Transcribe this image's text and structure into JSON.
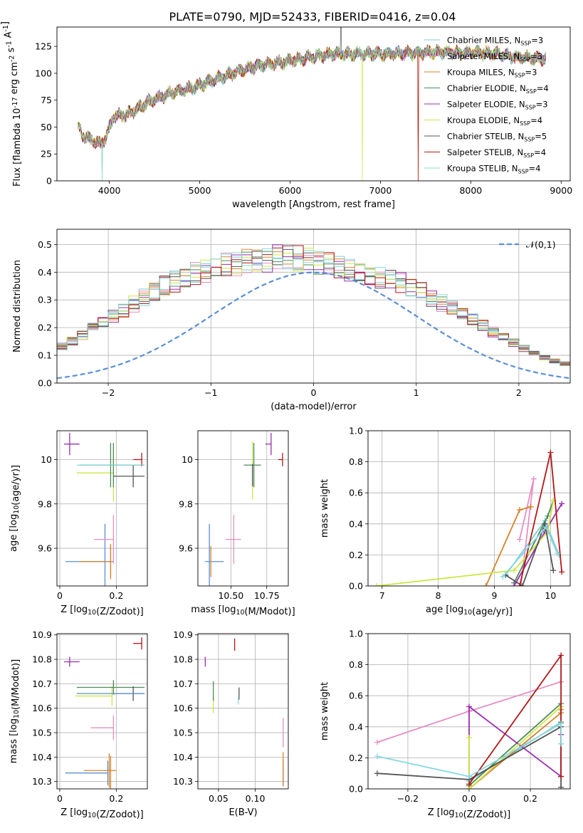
{
  "figure": {
    "title": "PLATE=0790, MJD=52433, FIBERID=0416, z=0.04"
  },
  "chart_data": [
    {
      "id": "spectrum",
      "type": "line",
      "xlabel": "wavelength [Angstrom, rest frame]",
      "ylabel": "Flux [f$_\\lambda$ 10$^{-17}$ erg cm$^{-2}$ s$^{-1}$ A$^{-1}$]",
      "xlim": [
        3420,
        9100
      ],
      "ylim": [
        0,
        143
      ],
      "xticks": [
        4000,
        5000,
        6000,
        7000,
        8000,
        9000
      ],
      "yticks": [
        0,
        25,
        50,
        75,
        100,
        125
      ],
      "legend_placement": "upper right",
      "series": [
        {
          "name": "Chabrier MILES, N_SSP=3",
          "color": "#7fc9d6"
        },
        {
          "name": "Salpeter MILES, N_SSP=3",
          "color": "#e58fc3"
        },
        {
          "name": "Kroupa MILES, N_SSP=3",
          "color": "#d9822b"
        },
        {
          "name": "Chabrier ELODIE, N_SSP=4",
          "color": "#4d8a5a"
        },
        {
          "name": "Salpeter ELODIE, N_SSP=3",
          "color": "#9a2fb0"
        },
        {
          "name": "Kroupa ELODIE, N_SSP=4",
          "color": "#cfe645"
        },
        {
          "name": "Chabrier STELIB, N_SSP=5",
          "color": "#555555"
        },
        {
          "name": "Salpeter STELIB, N_SSP=4",
          "color": "#b21818"
        },
        {
          "name": "Kroupa STELIB, N_SSP=4",
          "color": "#86d9e0"
        }
      ],
      "continuum": [
        [
          3650,
          52
        ],
        [
          3700,
          42
        ],
        [
          3800,
          38
        ],
        [
          3900,
          34
        ],
        [
          3960,
          40
        ],
        [
          4050,
          60
        ],
        [
          4200,
          62
        ],
        [
          4300,
          66
        ],
        [
          4400,
          72
        ],
        [
          4500,
          76
        ],
        [
          4700,
          82
        ],
        [
          4900,
          86
        ],
        [
          5100,
          92
        ],
        [
          5300,
          98
        ],
        [
          5500,
          104
        ],
        [
          5700,
          108
        ],
        [
          5900,
          110
        ],
        [
          6100,
          113
        ],
        [
          6300,
          116
        ],
        [
          6500,
          118
        ],
        [
          6700,
          118
        ],
        [
          6900,
          118
        ],
        [
          7100,
          118
        ],
        [
          7300,
          119
        ],
        [
          7500,
          119
        ],
        [
          7700,
          120
        ],
        [
          7900,
          119
        ],
        [
          8100,
          119
        ],
        [
          8300,
          118
        ],
        [
          8500,
          115
        ],
        [
          8700,
          114
        ],
        [
          8830,
          114
        ]
      ],
      "dropouts": [
        {
          "x": 3920,
          "min": 0
        },
        {
          "x": 6800,
          "min": 0
        },
        {
          "x": 7420,
          "min": 0
        }
      ],
      "spikes": [
        {
          "x": 6563,
          "max": 143
        }
      ]
    },
    {
      "id": "residuals",
      "type": "histogram",
      "xlabel": "(data-model)/error",
      "ylabel": "Normed distribution",
      "xlim": [
        -2.5,
        2.5
      ],
      "ylim": [
        0,
        0.555
      ],
      "xticks": [
        -2,
        -1,
        0,
        1,
        2
      ],
      "xtick_labels": [
        "−2",
        "−1",
        "0",
        "1",
        "2"
      ],
      "yticks": [
        0.0,
        0.1,
        0.2,
        0.3,
        0.4,
        0.5
      ],
      "grid": true,
      "legend_placement": "upper right",
      "reference": {
        "name": "$\\mathcal{N}(0,1)$",
        "color": "#5b8fd6",
        "dashed": true
      },
      "bin_width": 0.1,
      "envelope": [
        0.03,
        0.033,
        0.038,
        0.043,
        0.05,
        0.06,
        0.07,
        0.082,
        0.095,
        0.11,
        0.128,
        0.148,
        0.17,
        0.19,
        0.21,
        0.232,
        0.255,
        0.278,
        0.3,
        0.32,
        0.34,
        0.355,
        0.37,
        0.385,
        0.395,
        0.405,
        0.415,
        0.42,
        0.425,
        0.43,
        0.435,
        0.44,
        0.44,
        0.435,
        0.43,
        0.425,
        0.42,
        0.41,
        0.4,
        0.39,
        0.38,
        0.37,
        0.36,
        0.35,
        0.335,
        0.32,
        0.3,
        0.28,
        0.26,
        0.24,
        0.22,
        0.2,
        0.18,
        0.16,
        0.14,
        0.12,
        0.105,
        0.09,
        0.078,
        0.068,
        0.06,
        0.052,
        0.046,
        0.041,
        0.037,
        0.033,
        0.03,
        0.027,
        0.025,
        0.023
      ]
    },
    {
      "id": "age_vs_Z",
      "type": "errorbar",
      "xlabel": "Z [log$_{10}$(Z/Z$_\\odot$)]",
      "ylabel": "age  [log$_{10}$(age/yr)]",
      "xlim": [
        -0.01,
        0.31
      ],
      "ylim": [
        9.43,
        10.13
      ],
      "xticks": [
        0.0,
        0.2
      ],
      "yticks": [
        9.6,
        9.8,
        10.0
      ],
      "points": [
        {
          "x": 0.16,
          "xerr": [
            0.14,
            0.03
          ],
          "y": 9.54,
          "yerr": 0.17,
          "color": "#5b8fd6"
        },
        {
          "x": 0.18,
          "xerr": [
            0.11,
            0.0
          ],
          "y": 9.54,
          "yerr": 0.07,
          "color": "#d9822b"
        },
        {
          "x": 0.18,
          "xerr": [
            0.0,
            0.0
          ],
          "y": 9.54,
          "yerr": 0.08,
          "color": "#d9822b"
        },
        {
          "x": 0.19,
          "xerr": [
            0.07,
            0.0
          ],
          "y": 9.64,
          "yerr": 0.11,
          "color": "#e58fc3"
        },
        {
          "x": 0.035,
          "xerr": [
            0.02,
            0.035
          ],
          "y": 10.07,
          "yerr": 0.05,
          "color": "#9a2fb0"
        },
        {
          "x": 0.19,
          "xerr": [
            0.13,
            0.0
          ],
          "y": 9.94,
          "yerr": 0.13,
          "color": "#cfe645"
        },
        {
          "x": 0.18,
          "xerr": [
            0.0,
            0.0
          ],
          "y": 9.975,
          "yerr": 0.1,
          "color": "#4d8a5a"
        },
        {
          "x": 0.19,
          "xerr": [
            0.12,
            0.11
          ],
          "y": 9.975,
          "yerr": 0.1,
          "color": "#4d8a5a"
        },
        {
          "x": 0.26,
          "xerr": [
            0.07,
            0.04
          ],
          "y": 9.925,
          "yerr": 0.05,
          "color": "#555555"
        },
        {
          "x": 0.29,
          "xerr": [
            0.03,
            0.0
          ],
          "y": 10.0,
          "yerr": 0.03,
          "color": "#b21818"
        },
        {
          "x": 0.19,
          "xerr": [
            0.13,
            0.11
          ],
          "y": 9.975,
          "yerr": 0.0,
          "color": "#86d9e0"
        }
      ]
    },
    {
      "id": "age_vs_mass",
      "type": "errorbar",
      "xlabel": "mass [log$_{10}$(M/M$_\\odot$)]",
      "ylabel": "",
      "xlim": [
        10.27,
        10.9
      ],
      "ylim": [
        9.43,
        10.13
      ],
      "xticks": [
        10.5,
        10.75
      ],
      "xtick_labels": [
        "10.50",
        "10.75"
      ],
      "yticks": [
        9.6,
        9.8,
        10.0
      ],
      "points": [
        {
          "x": 10.35,
          "xerr": [
            0.03,
            0.1
          ],
          "y": 9.54,
          "yerr": 0.17,
          "color": "#5b8fd6"
        },
        {
          "x": 10.36,
          "xerr": [
            0.0,
            0.0
          ],
          "y": 9.54,
          "yerr": 0.07,
          "color": "#d9822b"
        },
        {
          "x": 10.52,
          "xerr": [
            0.06,
            0.05
          ],
          "y": 9.64,
          "yerr": 0.11,
          "color": "#e58fc3"
        },
        {
          "x": 10.78,
          "xerr": [
            0.04,
            0.0
          ],
          "y": 10.07,
          "yerr": 0.05,
          "color": "#9a2fb0"
        },
        {
          "x": 10.65,
          "xerr": [
            0.0,
            0.0
          ],
          "y": 9.95,
          "yerr": 0.13,
          "color": "#cfe645"
        },
        {
          "x": 10.66,
          "xerr": [
            0.07,
            0.05
          ],
          "y": 9.975,
          "yerr": 0.1,
          "color": "#4d8a5a"
        },
        {
          "x": 10.65,
          "xerr": [
            0.0,
            0.0
          ],
          "y": 9.93,
          "yerr": 0.05,
          "color": "#555555"
        },
        {
          "x": 10.86,
          "xerr": [
            0.03,
            0.0
          ],
          "y": 10.0,
          "yerr": 0.03,
          "color": "#b21818"
        },
        {
          "x": 10.65,
          "xerr": [
            0.0,
            0.0
          ],
          "y": 9.975,
          "yerr": 0.0,
          "color": "#86d9e0"
        }
      ]
    },
    {
      "id": "weight_vs_age",
      "type": "line",
      "xlabel": "age  [log$_{10}$(age/yr)]",
      "ylabel": "mass weight",
      "xlim": [
        6.75,
        10.35
      ],
      "ylim": [
        0,
        1.0
      ],
      "xticks": [
        7,
        8,
        9,
        10
      ],
      "yticks": [
        0.0,
        0.2,
        0.4,
        0.6,
        0.8,
        1.0
      ],
      "grid": true,
      "series": [
        {
          "name": "Chabrier MILES",
          "color": "#7fc9d6",
          "x": [
            9.2,
            9.9,
            10.15
          ],
          "y": [
            0.07,
            0.42,
            0.2
          ]
        },
        {
          "name": "Salpeter MILES",
          "color": "#e58fc3",
          "x": [
            9.45,
            9.7,
            9.47
          ],
          "y": [
            0.3,
            0.69,
            0.0
          ]
        },
        {
          "name": "Kroupa MILES",
          "color": "#d9822b",
          "x": [
            8.85,
            9.45,
            9.65
          ],
          "y": [
            0.0,
            0.49,
            0.51
          ]
        },
        {
          "name": "Chabrier ELODIE",
          "color": "#4d8a5a",
          "x": [
            9.35,
            9.95,
            10.05
          ],
          "y": [
            0.02,
            0.45,
            0.55
          ]
        },
        {
          "name": "Salpeter ELODIE",
          "color": "#9a2fb0",
          "x": [
            9.35,
            9.9,
            10.2
          ],
          "y": [
            0.0,
            0.35,
            0.53
          ]
        },
        {
          "name": "Kroupa ELODIE",
          "color": "#cfe645",
          "x": [
            6.9,
            9.35,
            9.95,
            10.05
          ],
          "y": [
            0.0,
            0.1,
            0.35,
            0.55
          ]
        },
        {
          "name": "Chabrier STELIB",
          "color": "#555555",
          "x": [
            9.2,
            9.5,
            9.9,
            10.05
          ],
          "y": [
            0.07,
            0.0,
            0.4,
            0.1
          ]
        },
        {
          "name": "Salpeter STELIB",
          "color": "#b21818",
          "x": [
            9.45,
            10.0,
            10.2
          ],
          "y": [
            0.0,
            0.86,
            0.09
          ]
        },
        {
          "name": "Kroupa STELIB",
          "color": "#86d9e0",
          "x": [
            9.15,
            9.92,
            10.12
          ],
          "y": [
            0.06,
            0.38,
            0.21
          ]
        }
      ]
    },
    {
      "id": "mass_vs_Z",
      "type": "errorbar",
      "xlabel": "Z [log$_{10}$(Z/Z$_\\odot$)]",
      "ylabel": "mass [log$_{10}$(M/M$_\\odot$)]",
      "xlim": [
        -0.01,
        0.31
      ],
      "ylim": [
        10.27,
        10.905
      ],
      "xticks": [
        0.0,
        0.2
      ],
      "yticks": [
        10.3,
        10.4,
        10.5,
        10.6,
        10.7,
        10.8,
        10.9
      ],
      "points": [
        {
          "x": 0.17,
          "xerr": [
            0.15,
            0.0
          ],
          "y": 10.335,
          "yerr": 0.05,
          "color": "#5b8fd6"
        },
        {
          "x": 0.175,
          "xerr": [
            0.09,
            0.025
          ],
          "y": 10.345,
          "yerr": 0.07,
          "color": "#d9822b"
        },
        {
          "x": 0.18,
          "xerr": [
            0.0,
            0.0
          ],
          "y": 10.335,
          "yerr": 0.07,
          "color": "#d9822b"
        },
        {
          "x": 0.19,
          "xerr": [
            0.08,
            0.0
          ],
          "y": 10.52,
          "yerr": 0.05,
          "color": "#e58fc3"
        },
        {
          "x": 0.035,
          "xerr": [
            0.02,
            0.035
          ],
          "y": 10.79,
          "yerr": 0.02,
          "color": "#9a2fb0"
        },
        {
          "x": 0.185,
          "xerr": [
            0.13,
            0.0
          ],
          "y": 10.65,
          "yerr": 0.04,
          "color": "#cfe645"
        },
        {
          "x": 0.19,
          "xerr": [
            0.13,
            0.11
          ],
          "y": 10.685,
          "yerr": 0.03,
          "color": "#4d8a5a"
        },
        {
          "x": 0.26,
          "xerr": [
            0.07,
            0.04
          ],
          "y": 10.66,
          "yerr": 0.03,
          "color": "#555555"
        },
        {
          "x": 0.29,
          "xerr": [
            0.03,
            0.0
          ],
          "y": 10.865,
          "yerr": 0.025,
          "color": "#b21818"
        },
        {
          "x": 0.19,
          "xerr": [
            0.13,
            0.11
          ],
          "y": 10.66,
          "yerr": 0.0,
          "color": "#5b8fd6"
        }
      ]
    },
    {
      "id": "mass_vs_ebv",
      "type": "errorbar",
      "xlabel": "E(B-V)",
      "ylabel": "",
      "xlim": [
        0.022,
        0.145
      ],
      "ylim": [
        10.27,
        10.905
      ],
      "xticks": [
        0.05,
        0.1
      ],
      "xtick_labels": [
        "0.05",
        "0.10"
      ],
      "yticks": [
        10.3,
        10.4,
        10.5,
        10.6,
        10.7,
        10.8,
        10.9
      ],
      "points": [
        {
          "x": 0.138,
          "xerr": [
            0.0,
            0.0
          ],
          "y": 10.335,
          "yerr": 0.05,
          "color": "#5b8fd6"
        },
        {
          "x": 0.138,
          "xerr": [
            0.0,
            0.0
          ],
          "y": 10.35,
          "yerr": 0.07,
          "color": "#d9822b"
        },
        {
          "x": 0.138,
          "xerr": [
            0.0,
            0.0
          ],
          "y": 10.5,
          "yerr": 0.06,
          "color": "#e58fc3"
        },
        {
          "x": 0.032,
          "xerr": [
            0.0,
            0.0
          ],
          "y": 10.79,
          "yerr": 0.02,
          "color": "#9a2fb0"
        },
        {
          "x": 0.043,
          "xerr": [
            0.0,
            0.0
          ],
          "y": 10.62,
          "yerr": 0.04,
          "color": "#cfe645"
        },
        {
          "x": 0.043,
          "xerr": [
            0.0,
            0.0
          ],
          "y": 10.67,
          "yerr": 0.04,
          "color": "#4d8a5a"
        },
        {
          "x": 0.078,
          "xerr": [
            0.0,
            0.0
          ],
          "y": 10.66,
          "yerr": 0.025,
          "color": "#555555"
        },
        {
          "x": 0.072,
          "xerr": [
            0.0,
            0.0
          ],
          "y": 10.86,
          "yerr": 0.025,
          "color": "#b21818"
        },
        {
          "x": 0.077,
          "xerr": [
            0.0,
            0.0
          ],
          "y": 10.63,
          "yerr": 0.015,
          "color": "#86d9e0"
        }
      ]
    },
    {
      "id": "weight_vs_Z",
      "type": "line",
      "xlabel": "Z [log$_{10}$(Z/Z$_\\odot$)]",
      "ylabel": "mass weight",
      "xlim": [
        -0.33,
        0.33
      ],
      "ylim": [
        0,
        1.0
      ],
      "xticks": [
        -0.2,
        0.0,
        0.2
      ],
      "xtick_labels": [
        "−0.2",
        "0.0",
        "0.2"
      ],
      "yticks": [
        0.0,
        0.2,
        0.4,
        0.6,
        0.8,
        1.0
      ],
      "grid": true,
      "series": [
        {
          "name": "Chabrier MILES",
          "color": "#7fc9d6",
          "x": [
            0.0,
            0.3,
            0.3
          ],
          "y": [
            0.05,
            0.43,
            0.29
          ]
        },
        {
          "name": "Salpeter MILES",
          "color": "#e58fc3",
          "x": [
            -0.3,
            0.0,
            0.3
          ],
          "y": [
            0.3,
            0.5,
            0.69
          ]
        },
        {
          "name": "Kroupa MILES",
          "color": "#d9822b",
          "x": [
            0.0,
            0.3,
            0.3
          ],
          "y": [
            0.0,
            0.49,
            0.51
          ]
        },
        {
          "name": "Chabrier ELODIE",
          "color": "#4d8a5a",
          "x": [
            0.0,
            0.3,
            0.3
          ],
          "y": [
            0.02,
            0.55,
            0.43
          ]
        },
        {
          "name": "Salpeter ELODIE",
          "color": "#9a2fb0",
          "x": [
            0.0,
            0.0,
            0.3,
            0.3
          ],
          "y": [
            0.0,
            0.53,
            0.08,
            0.35
          ]
        },
        {
          "name": "Kroupa ELODIE",
          "color": "#cfe645",
          "x": [
            0.0,
            0.0,
            0.3
          ],
          "y": [
            0.33,
            0.0,
            0.53
          ]
        },
        {
          "name": "Chabrier STELIB",
          "color": "#555555",
          "x": [
            -0.3,
            0.0,
            0.3,
            0.3
          ],
          "y": [
            0.1,
            0.06,
            0.4,
            0.01
          ]
        },
        {
          "name": "Salpeter STELIB",
          "color": "#b21818",
          "x": [
            0.0,
            0.3,
            0.3
          ],
          "y": [
            0.03,
            0.86,
            0.08
          ]
        },
        {
          "name": "Kroupa STELIB",
          "color": "#86d9e0",
          "x": [
            -0.3,
            0.0,
            0.3,
            0.3
          ],
          "y": [
            0.21,
            0.08,
            0.42,
            0.29
          ]
        }
      ]
    }
  ]
}
